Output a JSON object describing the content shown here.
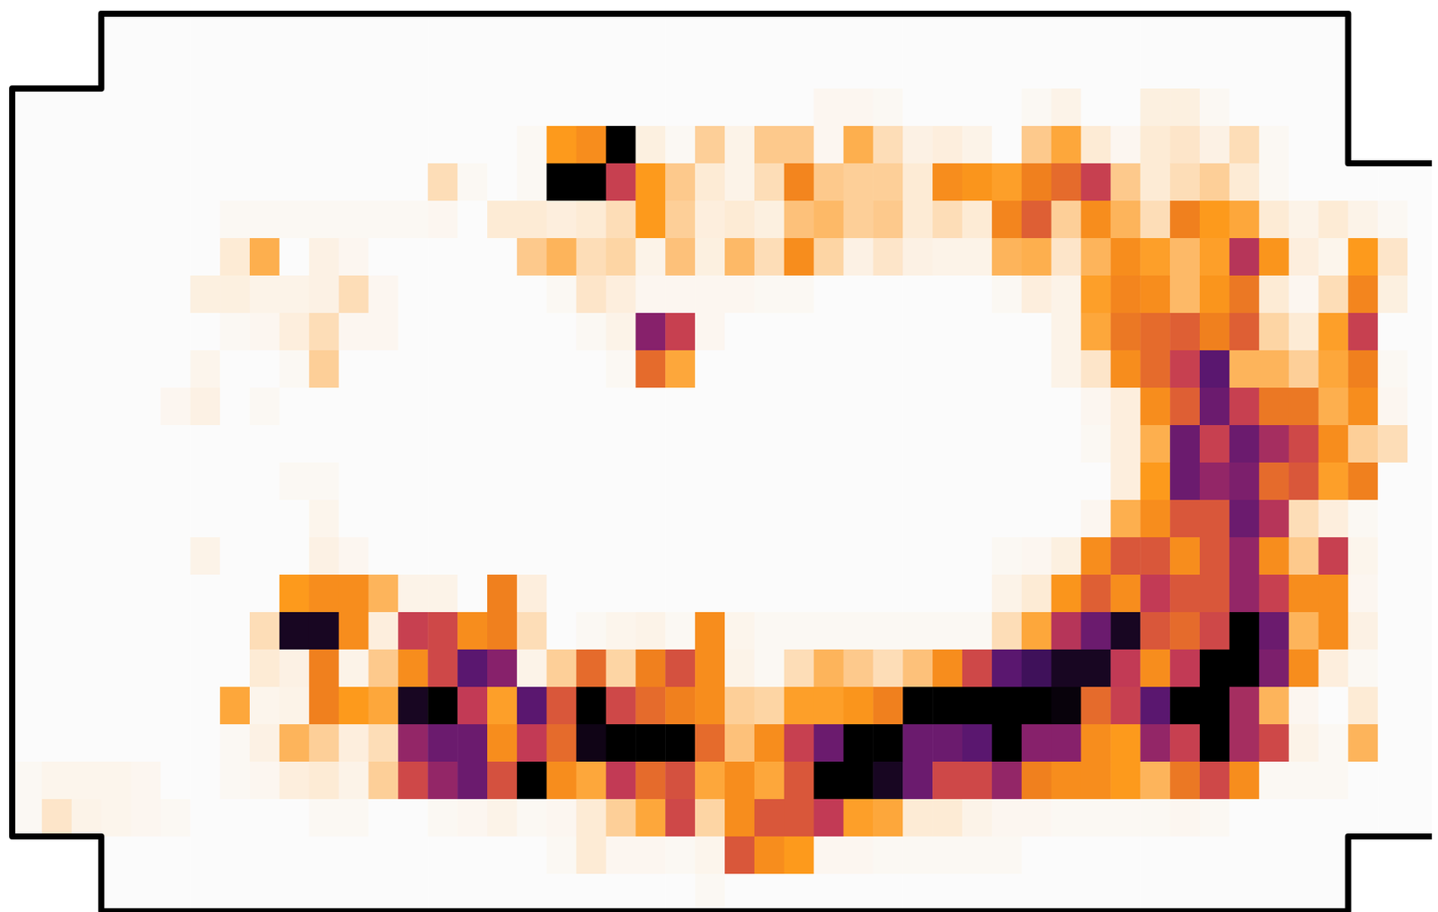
{
  "chart_data": {
    "type": "heatmap",
    "tick_labels": false,
    "cells": [
      [
        null,
        null,
        null,
        0,
        0,
        0,
        0,
        0,
        0,
        0,
        0,
        0,
        0,
        0,
        0,
        0,
        0,
        0,
        0,
        0,
        0,
        0,
        0,
        0,
        0,
        0,
        0,
        0,
        0,
        0,
        0,
        0,
        0,
        0,
        0,
        0,
        0,
        0,
        0,
        0,
        0,
        0,
        0,
        0,
        0,
        null,
        null,
        null
      ],
      [
        null,
        null,
        null,
        0,
        0,
        0,
        0,
        0,
        0,
        0,
        0,
        0,
        0,
        0,
        0,
        0,
        0,
        0,
        0,
        0,
        0,
        0,
        0,
        0,
        0,
        0,
        0,
        0,
        0,
        0,
        0,
        0,
        0,
        0,
        0,
        0,
        0,
        0,
        0,
        0,
        0,
        0,
        0,
        0,
        0,
        null,
        null,
        null
      ],
      [
        0,
        0,
        0,
        0,
        0,
        0,
        0,
        0,
        0,
        0,
        0,
        0,
        0,
        0,
        0,
        0,
        0,
        0,
        0,
        0,
        0,
        0,
        0,
        0,
        0,
        0,
        0,
        0.03,
        0.03,
        0.02,
        0,
        0,
        0,
        0,
        0.02,
        0.05,
        0,
        0,
        0.07,
        0.07,
        0.02,
        0,
        0,
        0,
        0,
        null,
        null,
        null
      ],
      [
        0,
        0,
        0,
        0,
        0,
        0,
        0,
        0,
        0,
        0,
        0,
        0,
        0,
        0,
        0,
        0,
        0,
        0.02,
        0.4,
        0.45,
        1,
        0.07,
        0.02,
        0.2,
        0.05,
        0.22,
        0.22,
        0.03,
        0.32,
        0.15,
        0.06,
        0.08,
        0.05,
        0,
        0.22,
        0.35,
        0.1,
        0.03,
        0.1,
        0.12,
        0.06,
        0.15,
        0.02,
        0,
        0,
        null,
        null,
        null
      ],
      [
        0,
        0,
        0,
        0,
        0,
        0,
        0,
        0,
        0,
        0,
        0,
        0,
        0,
        0,
        0.15,
        0.02,
        0,
        0.02,
        1,
        1,
        0.68,
        0.4,
        0.22,
        0.1,
        0.05,
        0.15,
        0.48,
        0.22,
        0.2,
        0.2,
        0.1,
        0.45,
        0.42,
        0.38,
        0.5,
        0.55,
        0.68,
        0.22,
        0.1,
        0.15,
        0.2,
        0.1,
        0.02,
        0,
        0,
        0,
        0,
        0
      ],
      [
        0,
        0,
        0,
        0,
        0,
        0,
        0,
        0.02,
        0.02,
        0.02,
        0.02,
        0.02,
        0.02,
        0.02,
        0.03,
        0,
        0.1,
        0.1,
        0.08,
        0.1,
        0.15,
        0.4,
        0.2,
        0.08,
        0.1,
        0.07,
        0.25,
        0.28,
        0.2,
        0.22,
        0.1,
        0.15,
        0.1,
        0.48,
        0.58,
        0.2,
        0.45,
        0.3,
        0.15,
        0.5,
        0.4,
        0.35,
        0.1,
        0.05,
        0.1,
        0.05,
        0.02,
        0
      ],
      [
        0,
        0,
        0,
        0,
        0,
        0,
        0,
        0.1,
        0.32,
        0,
        0.06,
        0.03,
        0,
        0,
        0,
        0,
        0,
        0.22,
        0.3,
        0.15,
        0.18,
        0.05,
        0.25,
        0.07,
        0.28,
        0.15,
        0.45,
        0.18,
        0.06,
        0.12,
        0.06,
        0.05,
        0.05,
        0.3,
        0.32,
        0.12,
        0.3,
        0.45,
        0.38,
        0.28,
        0.38,
        0.72,
        0.42,
        0.08,
        0.04,
        0.4,
        0.12,
        0
      ],
      [
        0,
        0,
        0,
        0,
        0,
        0,
        0.07,
        0.07,
        0.05,
        0.05,
        0.06,
        0.15,
        0.03,
        0,
        0,
        0,
        0,
        0,
        0.02,
        0.12,
        0.08,
        0.03,
        0.03,
        0.03,
        0.03,
        0.02,
        0.02,
        0,
        0,
        0,
        0,
        0,
        0,
        0.02,
        0.08,
        0.05,
        0.38,
        0.48,
        0.45,
        0.28,
        0.42,
        0.52,
        0.1,
        0.03,
        0.15,
        0.48,
        0.07,
        0
      ],
      [
        0,
        0,
        0,
        0,
        0,
        0,
        0,
        0.02,
        0.03,
        0.08,
        0.15,
        0.03,
        0.03,
        0,
        0,
        0,
        0,
        0,
        0,
        0.02,
        0.05,
        0.8,
        0.68,
        0.03,
        0,
        0,
        0,
        0,
        0,
        0,
        0,
        0,
        0,
        0,
        0,
        0.05,
        0.35,
        0.52,
        0.55,
        0.58,
        0.5,
        0.58,
        0.18,
        0.1,
        0.38,
        0.68,
        0,
        0
      ],
      [
        0,
        0,
        0,
        0,
        0,
        0,
        0.04,
        0,
        0,
        0.02,
        0.2,
        0,
        0,
        0,
        0,
        0,
        0,
        0,
        0,
        0,
        0.02,
        0.55,
        0.35,
        0,
        0,
        0,
        0,
        0,
        0,
        0,
        0,
        0,
        0,
        0,
        0,
        0.05,
        0.12,
        0.45,
        0.55,
        0.68,
        0.88,
        0.3,
        0.3,
        0.2,
        0.35,
        0.5,
        0.02,
        0
      ],
      [
        0,
        0,
        0,
        0,
        0,
        0.03,
        0.06,
        0,
        0.02,
        0,
        0,
        0,
        0,
        0,
        0,
        0,
        0,
        0,
        0,
        0,
        0,
        0,
        0,
        0,
        0,
        0,
        0,
        0,
        0,
        0,
        0,
        0,
        0,
        0,
        0,
        0,
        0.03,
        0.08,
        0.45,
        0.58,
        0.85,
        0.68,
        0.52,
        0.52,
        0.32,
        0.45,
        0.03,
        0
      ],
      [
        0,
        0,
        0,
        0,
        0,
        0,
        0,
        0,
        0,
        0,
        0,
        0,
        0,
        0,
        0,
        0,
        0,
        0,
        0,
        0,
        0,
        0,
        0,
        0,
        0,
        0,
        0,
        0,
        0,
        0,
        0,
        0,
        0,
        0,
        0,
        0,
        0.02,
        0.08,
        0.32,
        0.85,
        0.68,
        0.85,
        0.75,
        0.65,
        0.45,
        0.2,
        0.15,
        0
      ],
      [
        0,
        0,
        0,
        0,
        0,
        0,
        0,
        0,
        0,
        0.02,
        0.02,
        0,
        0,
        0,
        0,
        0,
        0,
        0,
        0,
        0,
        0,
        0,
        0,
        0,
        0,
        0,
        0,
        0,
        0,
        0,
        0,
        0,
        0,
        0,
        0,
        0,
        0,
        0.08,
        0.4,
        0.85,
        0.78,
        0.82,
        0.55,
        0.6,
        0.38,
        0.5,
        0,
        0
      ],
      [
        0,
        0,
        0,
        0,
        0,
        0,
        0,
        0,
        0,
        0,
        0.04,
        0,
        0,
        0,
        0,
        0,
        0,
        0,
        0,
        0,
        0,
        0,
        0,
        0,
        0,
        0,
        0,
        0,
        0,
        0,
        0,
        0,
        0,
        0,
        0,
        0,
        0.03,
        0.32,
        0.45,
        0.6,
        0.6,
        0.85,
        0.72,
        0.15,
        0.08,
        0.02,
        0,
        0
      ],
      [
        0,
        0,
        0,
        0,
        0,
        0,
        0.05,
        0,
        0,
        0,
        0.06,
        0.03,
        0,
        0,
        0,
        0,
        0,
        0,
        0,
        0,
        0,
        0,
        0,
        0,
        0,
        0,
        0,
        0,
        0,
        0,
        0,
        0,
        0,
        0.02,
        0.03,
        0.07,
        0.45,
        0.6,
        0.6,
        0.45,
        0.6,
        0.78,
        0.45,
        0.22,
        0.68,
        0.04,
        0,
        0
      ],
      [
        0,
        0,
        0,
        0,
        0,
        0,
        0,
        0,
        0,
        0.4,
        0.45,
        0.45,
        0.3,
        0.05,
        0.05,
        0,
        0.5,
        0.08,
        0,
        0,
        0,
        0,
        0,
        0,
        0,
        0,
        0,
        0,
        0,
        0,
        0,
        0,
        0,
        0.05,
        0.1,
        0.42,
        0.58,
        0.45,
        0.7,
        0.6,
        0.6,
        0.78,
        0.68,
        0.45,
        0.45,
        0.03,
        0,
        0
      ],
      [
        0,
        0,
        0,
        0,
        0,
        0,
        0,
        0,
        0.15,
        0.97,
        0.97,
        0.45,
        0.08,
        0.68,
        0.65,
        0.45,
        0.5,
        0.15,
        0,
        0.02,
        0.04,
        0.05,
        0.02,
        0.45,
        0.04,
        0.02,
        0.02,
        0.02,
        0.02,
        0.02,
        0.02,
        0.02,
        0.02,
        0.15,
        0.35,
        0.72,
        0.85,
        0.97,
        0.6,
        0.55,
        0.65,
        1,
        0.85,
        0.3,
        0.45,
        0.06,
        0,
        0
      ],
      [
        0,
        0,
        0,
        0,
        0,
        0,
        0,
        0,
        0.1,
        0.06,
        0.5,
        0.05,
        0.22,
        0.45,
        0.65,
        0.88,
        0.8,
        0.05,
        0.2,
        0.55,
        0.18,
        0.5,
        0.62,
        0.45,
        0.05,
        0.02,
        0.15,
        0.3,
        0.22,
        0.15,
        0.25,
        0.45,
        0.65,
        0.88,
        0.92,
        0.97,
        0.97,
        0.7,
        0.45,
        0.7,
        1,
        1,
        0.82,
        0.45,
        0.08,
        0.02,
        0,
        0
      ],
      [
        0,
        0,
        0,
        0,
        0,
        0,
        0,
        0.35,
        0.04,
        0.05,
        0.5,
        0.4,
        0.35,
        0.97,
        1,
        0.7,
        0.38,
        0.88,
        0.6,
        1,
        0.65,
        0.55,
        0.5,
        0.45,
        0.2,
        0.18,
        0.38,
        0.38,
        0.42,
        0.5,
        1,
        1,
        1,
        1,
        1,
        0.99,
        0.55,
        0.68,
        0.88,
        1,
        1,
        0.75,
        0.3,
        0.03,
        0,
        0.1,
        0,
        0
      ],
      [
        0,
        0,
        0,
        0,
        0,
        0,
        0,
        0.02,
        0.06,
        0.3,
        0.2,
        0.08,
        0.15,
        0.78,
        0.85,
        0.85,
        0.45,
        0.7,
        0.55,
        0.98,
        1,
        1,
        1,
        0.55,
        0.25,
        0.45,
        0.68,
        0.85,
        1,
        1,
        0.85,
        0.85,
        0.88,
        1,
        0.8,
        0.8,
        0.45,
        0.4,
        0.78,
        0.68,
        1,
        0.75,
        0.65,
        0.05,
        0.02,
        0.3,
        0,
        0
      ],
      [
        0.02,
        0.04,
        0.04,
        0.04,
        0.03,
        0,
        0,
        0.02,
        0.03,
        0.08,
        0.1,
        0.05,
        0.2,
        0.65,
        0.78,
        0.85,
        0.62,
        1,
        0.45,
        0.35,
        0.7,
        0.55,
        0.62,
        0.35,
        0.45,
        0.35,
        0.6,
        1,
        1,
        0.97,
        0.85,
        0.65,
        0.65,
        0.78,
        0.5,
        0.45,
        0.45,
        0.4,
        0.3,
        0.52,
        0.65,
        0.45,
        0.02,
        0.02,
        0.02,
        0,
        0,
        0
      ],
      [
        0.02,
        0.12,
        0.05,
        0.04,
        0.03,
        0.02,
        0,
        0,
        0,
        0,
        0.02,
        0.02,
        0,
        0,
        0.02,
        0.03,
        0.05,
        0.02,
        0.03,
        0.1,
        0.2,
        0.35,
        0.65,
        0.18,
        0.45,
        0.6,
        0.6,
        0.7,
        0.38,
        0.35,
        0.1,
        0.1,
        0.05,
        0.03,
        0.03,
        0.02,
        0.02,
        0.02,
        0.02,
        0.03,
        0.02,
        0,
        0,
        0,
        0,
        0,
        0,
        0
      ],
      [
        null,
        null,
        null,
        0,
        0,
        0,
        0,
        0,
        0,
        0,
        0,
        0,
        0,
        0,
        0,
        0,
        0,
        0,
        0.02,
        0.1,
        0.03,
        0.03,
        0.02,
        0.04,
        0.6,
        0.45,
        0.4,
        0.03,
        0.03,
        0.02,
        0.02,
        0.02,
        0.02,
        0.02,
        0,
        0,
        0,
        0,
        0,
        0,
        0,
        0,
        0,
        0,
        0,
        null,
        null,
        null
      ],
      [
        null,
        null,
        null,
        0,
        0,
        0,
        0,
        0,
        0,
        0,
        0,
        0,
        0,
        0,
        0,
        0,
        0,
        0,
        0,
        0,
        0,
        0,
        0,
        0.02,
        0,
        0,
        0,
        0,
        0,
        0,
        0,
        0,
        0,
        0,
        0,
        0,
        0,
        0,
        0,
        0,
        0,
        0,
        0,
        0,
        0,
        null,
        null,
        null
      ]
    ]
  }
}
